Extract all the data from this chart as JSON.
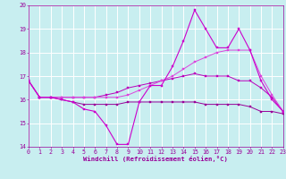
{
  "title": "",
  "xlabel": "Windchill (Refroidissement éolien,°C)",
  "xlim": [
    0,
    23
  ],
  "ylim": [
    14,
    20
  ],
  "yticks": [
    14,
    15,
    16,
    17,
    18,
    19,
    20
  ],
  "xticks": [
    0,
    1,
    2,
    3,
    4,
    5,
    6,
    7,
    8,
    9,
    10,
    11,
    12,
    13,
    14,
    15,
    16,
    17,
    18,
    19,
    20,
    21,
    22,
    23
  ],
  "bg_color": "#c8eef0",
  "grid_color": "#ffffff",
  "line_color_dark": "#990099",
  "line_color_mid": "#bb00bb",
  "line_color_bright": "#dd44dd",
  "line_color_spike": "#cc00cc",
  "series1_x": [
    0,
    1,
    2,
    3,
    4,
    5,
    6,
    7,
    8,
    9,
    10,
    11,
    12,
    13,
    14,
    15,
    16,
    17,
    18,
    19,
    20,
    21,
    22,
    23
  ],
  "series1_y": [
    16.8,
    16.1,
    16.1,
    16.0,
    15.9,
    15.6,
    15.5,
    14.9,
    14.1,
    14.1,
    15.9,
    16.6,
    16.6,
    17.4,
    18.5,
    19.8,
    19.0,
    18.2,
    18.2,
    19.0,
    18.1,
    16.8,
    16.0,
    15.5
  ],
  "series2_x": [
    0,
    1,
    2,
    3,
    4,
    5,
    6,
    7,
    8,
    9,
    10,
    11,
    12,
    13,
    14,
    15,
    16,
    17,
    18,
    19,
    20,
    21,
    22,
    23
  ],
  "series2_y": [
    16.8,
    16.1,
    16.1,
    16.1,
    16.1,
    16.1,
    16.1,
    16.1,
    16.1,
    16.2,
    16.4,
    16.6,
    16.8,
    17.0,
    17.3,
    17.6,
    17.8,
    18.0,
    18.1,
    18.1,
    18.1,
    17.0,
    16.2,
    15.5
  ],
  "series3_x": [
    0,
    1,
    2,
    3,
    4,
    5,
    6,
    7,
    8,
    9,
    10,
    11,
    12,
    13,
    14,
    15,
    16,
    17,
    18,
    19,
    20,
    21,
    22,
    23
  ],
  "series3_y": [
    16.8,
    16.1,
    16.1,
    16.1,
    16.1,
    16.1,
    16.1,
    16.2,
    16.3,
    16.5,
    16.6,
    16.7,
    16.8,
    16.9,
    17.0,
    17.1,
    17.0,
    17.0,
    17.0,
    16.8,
    16.8,
    16.5,
    16.1,
    15.5
  ],
  "series4_x": [
    0,
    1,
    2,
    3,
    4,
    5,
    6,
    7,
    8,
    9,
    10,
    11,
    12,
    13,
    14,
    15,
    16,
    17,
    18,
    19,
    20,
    21,
    22,
    23
  ],
  "series4_y": [
    16.8,
    16.1,
    16.1,
    16.0,
    15.9,
    15.8,
    15.8,
    15.8,
    15.8,
    15.9,
    15.9,
    15.9,
    15.9,
    15.9,
    15.9,
    15.9,
    15.8,
    15.8,
    15.8,
    15.8,
    15.7,
    15.5,
    15.5,
    15.4
  ]
}
